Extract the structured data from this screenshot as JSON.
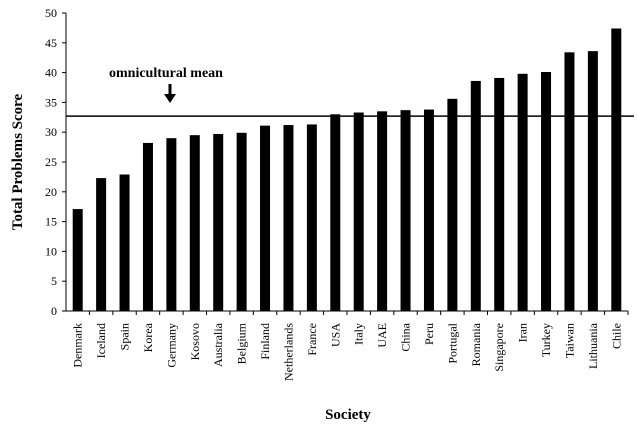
{
  "chart_data": {
    "type": "bar",
    "title": "",
    "xlabel": "Society",
    "ylabel": "Total Problems Score",
    "ylim": [
      0,
      50
    ],
    "yticks": [
      0,
      5,
      10,
      15,
      20,
      25,
      30,
      35,
      40,
      45,
      50
    ],
    "grid": false,
    "legend": "none",
    "bar_color": "#000000",
    "categories": [
      "Denmark",
      "Iceland",
      "Spain",
      "Korea",
      "Germany",
      "Kosovo",
      "Australia",
      "Belgium",
      "Finland",
      "Netherlands",
      "France",
      "USA",
      "Italy",
      "UAE",
      "China",
      "Peru",
      "Portugal",
      "Romania",
      "Singapore",
      "Iran",
      "Turkey",
      "Taiwan",
      "Lithuania",
      "Chile"
    ],
    "values": [
      17.1,
      22.3,
      22.9,
      28.2,
      29.0,
      29.5,
      29.7,
      29.9,
      31.1,
      31.2,
      31.3,
      33.0,
      33.3,
      33.5,
      33.7,
      33.8,
      35.6,
      38.6,
      39.1,
      39.8,
      40.1,
      43.4,
      43.6,
      47.4
    ],
    "reference_line": {
      "label": "omnicultural mean",
      "value": 32.7
    }
  }
}
